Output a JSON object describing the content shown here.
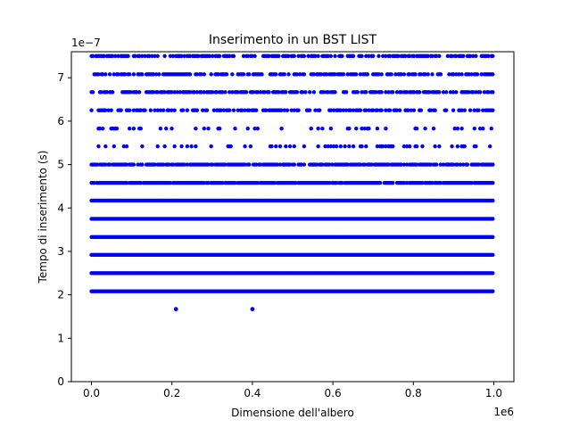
{
  "chart_data": {
    "type": "scatter",
    "title": "Inserimento in un BST LIST",
    "xlabel": "Dimensione dell'albero",
    "ylabel": "Tempo di inserimento (s)",
    "x_offset_text": "1e6",
    "y_offset_text": "1e−7",
    "xlim": [
      -0.05,
      1.05
    ],
    "ylim": [
      0,
      7.6
    ],
    "x_scale": 1000000,
    "y_scale": 1e-07,
    "x_ticks": [
      0.0,
      0.2,
      0.4,
      0.6,
      0.8,
      1.0
    ],
    "x_tick_labels": [
      "0.0",
      "0.2",
      "0.4",
      "0.6",
      "0.8",
      "1.0"
    ],
    "y_ticks": [
      0,
      1,
      2,
      3,
      4,
      5,
      6,
      7
    ],
    "y_tick_labels": [
      "0",
      "1",
      "2",
      "3",
      "4",
      "5",
      "6",
      "7"
    ],
    "grid": false,
    "marker_color": "#0000ff",
    "series": [
      {
        "levels": [
          {
            "y": 2.08,
            "density": 1.0
          },
          {
            "y": 2.5,
            "density": 1.0
          },
          {
            "y": 2.92,
            "density": 1.0
          },
          {
            "y": 3.33,
            "density": 1.0
          },
          {
            "y": 3.75,
            "density": 1.0
          },
          {
            "y": 4.17,
            "density": 1.0
          },
          {
            "y": 4.58,
            "density": 0.9
          },
          {
            "y": 5.0,
            "density": 0.8
          },
          {
            "y": 5.42,
            "density": 0.22
          },
          {
            "y": 5.83,
            "density": 0.18
          },
          {
            "y": 6.25,
            "density": 0.5
          },
          {
            "y": 6.67,
            "density": 0.65
          },
          {
            "y": 7.08,
            "density": 0.6
          },
          {
            "y": 7.5,
            "density": 0.65
          }
        ],
        "outliers": [
          {
            "x": 0.21,
            "y": 1.67
          },
          {
            "x": 0.4,
            "y": 1.67
          }
        ]
      }
    ]
  }
}
